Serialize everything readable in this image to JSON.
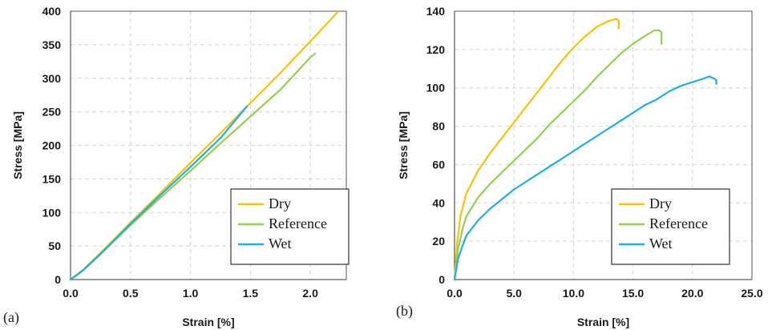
{
  "chart_data": [
    {
      "type": "line",
      "panel_label": "(a)",
      "xlabel": "Strain [%]",
      "ylabel": "Stress [MPa]",
      "xlim": [
        0,
        2.3
      ],
      "ylim": [
        0,
        400
      ],
      "xticks": [
        0,
        0.5,
        1.0,
        1.5,
        2.0
      ],
      "xtick_labels": [
        "0.0",
        "0.5",
        "1.0",
        "1.5",
        "2.0"
      ],
      "yticks": [
        0,
        50,
        100,
        150,
        200,
        250,
        300,
        350,
        400
      ],
      "ytick_labels": [
        "0",
        "50",
        "100",
        "150",
        "200",
        "250",
        "300",
        "350",
        "400"
      ],
      "grid": true,
      "legend_position": "bottom-right",
      "series": [
        {
          "name": "Dry",
          "color": "#ffc000",
          "x": [
            0,
            0.1,
            0.25,
            0.5,
            0.75,
            1.0,
            1.25,
            1.5,
            1.75,
            2.0,
            2.23
          ],
          "y": [
            0,
            14,
            40,
            85,
            129,
            174,
            218,
            263,
            308,
            355,
            399
          ]
        },
        {
          "name": "Reference",
          "color": "#92d050",
          "x": [
            0,
            0.1,
            0.25,
            0.5,
            0.75,
            1.0,
            1.25,
            1.5,
            1.75,
            2.0,
            2.04
          ],
          "y": [
            0,
            13,
            38,
            81,
            122,
            162,
            203,
            243,
            283,
            331,
            337
          ]
        },
        {
          "name": "Wet",
          "color": "#1ab0e8",
          "x": [
            0,
            0.1,
            0.25,
            0.5,
            0.75,
            1.0,
            1.25,
            1.47
          ],
          "y": [
            0,
            13,
            38,
            83,
            126,
            168,
            211,
            258
          ]
        }
      ]
    },
    {
      "type": "line",
      "panel_label": "(b)",
      "xlabel": "Strain [%]",
      "ylabel": "Stress [MPa]",
      "xlim": [
        0,
        25
      ],
      "ylim": [
        0,
        140
      ],
      "xticks": [
        0,
        5,
        10,
        15,
        20,
        25
      ],
      "xtick_labels": [
        "0.0",
        "5.0",
        "10.0",
        "15.0",
        "20.0",
        "25.0"
      ],
      "yticks": [
        0,
        20,
        40,
        60,
        80,
        100,
        120,
        140
      ],
      "ytick_labels": [
        "0",
        "20",
        "40",
        "60",
        "80",
        "100",
        "120",
        "140"
      ],
      "grid": true,
      "legend_position": "bottom-right",
      "series": [
        {
          "name": "Dry",
          "color": "#ffc000",
          "x": [
            0,
            0.2,
            0.5,
            1.0,
            2.0,
            3.0,
            4.0,
            5.0,
            6.0,
            7.0,
            8.0,
            9.0,
            10.0,
            11.0,
            12.0,
            13.0,
            13.6,
            13.8,
            13.8
          ],
          "y": [
            0,
            18,
            33,
            45,
            57,
            66,
            74,
            82,
            90,
            98,
            106,
            114,
            121,
            127,
            132,
            135,
            136,
            135,
            131
          ]
        },
        {
          "name": "Reference",
          "color": "#92d050",
          "x": [
            0,
            0.3,
            0.7,
            1.0,
            2.0,
            3.0,
            4.0,
            5.0,
            6.0,
            7.0,
            8.0,
            9.0,
            10.0,
            11.0,
            12.0,
            13.0,
            14.0,
            15.0,
            16.0,
            16.8,
            17.2,
            17.4,
            17.4
          ],
          "y": [
            0,
            16,
            27,
            33,
            43,
            50,
            56,
            62,
            68,
            74,
            81,
            87,
            93,
            99,
            106,
            112,
            118,
            123,
            127,
            130,
            130,
            129,
            123
          ]
        },
        {
          "name": "Wet",
          "color": "#1ab0e8",
          "x": [
            0,
            0.3,
            0.7,
            1.0,
            2.0,
            3.0,
            4.0,
            5.0,
            6.0,
            7.0,
            8.0,
            9.0,
            10.0,
            11.0,
            12.0,
            13.0,
            14.0,
            15.0,
            16.0,
            17.0,
            18.0,
            19.0,
            20.0,
            21.0,
            21.4,
            21.8,
            22.0,
            22.0
          ],
          "y": [
            0,
            11,
            18,
            23,
            31,
            37,
            42,
            47,
            51,
            55,
            59,
            63,
            67,
            71,
            75,
            79,
            83,
            87,
            91,
            94,
            98,
            101,
            103,
            105,
            106,
            105,
            104,
            102
          ]
        }
      ]
    }
  ]
}
